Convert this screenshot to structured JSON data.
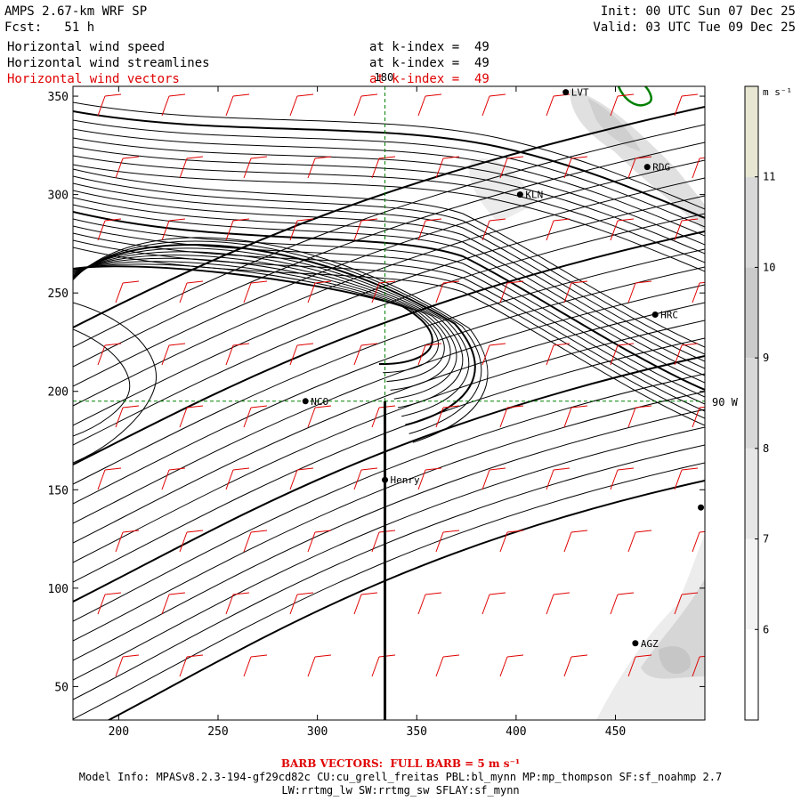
{
  "header": {
    "model": "AMPS 2.67-km WRF SP",
    "fcst": "Fcst:   51 h",
    "init": "Init: 00 UTC Sun 07 Dec 25",
    "valid": "Valid: 03 UTC Tue 09 Dec 25",
    "fields": [
      {
        "label": "Horizontal wind speed",
        "level": "at k-index =  49",
        "color": "#000000"
      },
      {
        "label": "Horizontal wind streamlines",
        "level": "at k-index =  49",
        "color": "#000000"
      },
      {
        "label": "Horizontal wind vectors",
        "level": "at k-index =  49",
        "color": "#e00000"
      }
    ]
  },
  "map": {
    "x_ticks": [
      "200",
      "250",
      "300",
      "350",
      "400",
      "450"
    ],
    "y_ticks": [
      "350",
      "300",
      "250",
      "200",
      "150",
      "100",
      "50"
    ],
    "x_range": [
      177,
      495
    ],
    "y_range": [
      33,
      355
    ],
    "meridian_label": "180",
    "parallel_label": "90 W",
    "stations": [
      {
        "name": "LVT",
        "x": 425,
        "y": 352
      },
      {
        "name": "RDG",
        "x": 466,
        "y": 314
      },
      {
        "name": "KLN",
        "x": 402,
        "y": 300
      },
      {
        "name": "HRC",
        "x": 470,
        "y": 239
      },
      {
        "name": "NCO",
        "x": 294,
        "y": 195
      },
      {
        "name": "Henry",
        "x": 334,
        "y": 155
      },
      {
        "name": "",
        "x": 493,
        "y": 141
      },
      {
        "name": "AGZ",
        "x": 460,
        "y": 72
      }
    ]
  },
  "colorbar": {
    "unit": "m s⁻¹",
    "ticks": [
      "11",
      "10",
      "9",
      "8",
      "7",
      "6"
    ],
    "tick_values": [
      11,
      10,
      9,
      8,
      7,
      6
    ],
    "range": [
      5,
      12
    ],
    "colors": [
      "#ffffff",
      "#f3f3f3",
      "#e6e6e6",
      "#d8d8d8",
      "#cacaca",
      "#d8d8d8",
      "#e6e6d2"
    ]
  },
  "footer": {
    "barb_title": "BARB VECTORS:  FULL BARB = 5 m s⁻¹",
    "model_info": "Model Info: MPASv8.2.3-194-gf29cd82c CU:cu_grell_freitas PBL:bl_mynn MP:mp_thompson SF:sf_noahmp 2.7",
    "model_info2": "LW:rrtmg_lw SW:rrtmg_sw SFLAY:sf_mynn"
  }
}
